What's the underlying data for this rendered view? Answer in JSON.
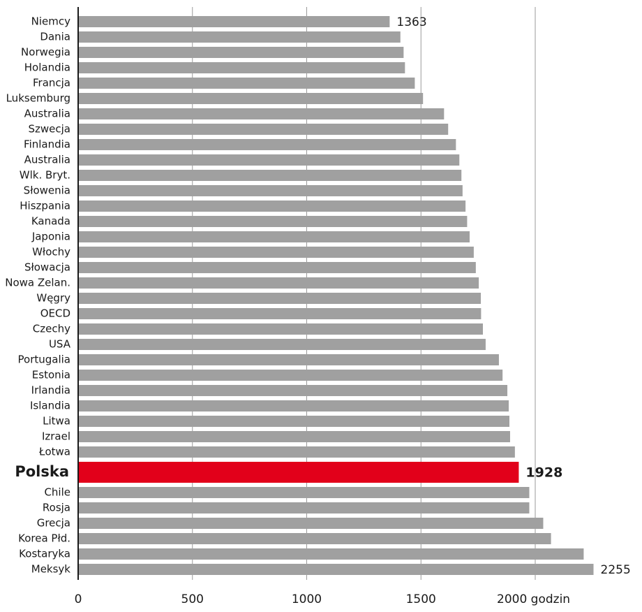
{
  "chart_data": {
    "type": "barh",
    "categories": [
      "Niemcy",
      "Dania",
      "Norwegia",
      "Holandia",
      "Francja",
      "Luksemburg",
      "Australia",
      "Szwecja",
      "Finlandia",
      "Australia",
      "Wlk. Bryt.",
      "Słowenia",
      "Hiszpania",
      "Kanada",
      "Japonia",
      "Włochy",
      "Słowacja",
      "Nowa Zelan.",
      "Węgry",
      "OECD",
      "Czechy",
      "USA",
      "Portugalia",
      "Estonia",
      "Irlandia",
      "Islandia",
      "Litwa",
      "Izrael",
      "Łotwa",
      "Polska",
      "Chile",
      "Rosja",
      "Grecja",
      "Korea Płd.",
      "Kostaryka",
      "Meksyk"
    ],
    "values": [
      1363,
      1410,
      1424,
      1430,
      1473,
      1509,
      1601,
      1619,
      1653,
      1668,
      1677,
      1682,
      1695,
      1702,
      1713,
      1731,
      1740,
      1753,
      1762,
      1763,
      1771,
      1783,
      1841,
      1857,
      1878,
      1884,
      1887,
      1890,
      1911,
      1928,
      1974,
      1974,
      2035,
      2069,
      2212,
      2255
    ],
    "color": "#a0a0a0",
    "highlight_index": 29,
    "highlight_color": "#e2001a",
    "labeled_indices": [
      0,
      29,
      35
    ],
    "xlim": [
      0,
      2400
    ],
    "xticks": [
      0,
      500,
      1000,
      1500,
      {
        "value": 2000,
        "label": "2000 godzin"
      }
    ],
    "grid": true
  }
}
